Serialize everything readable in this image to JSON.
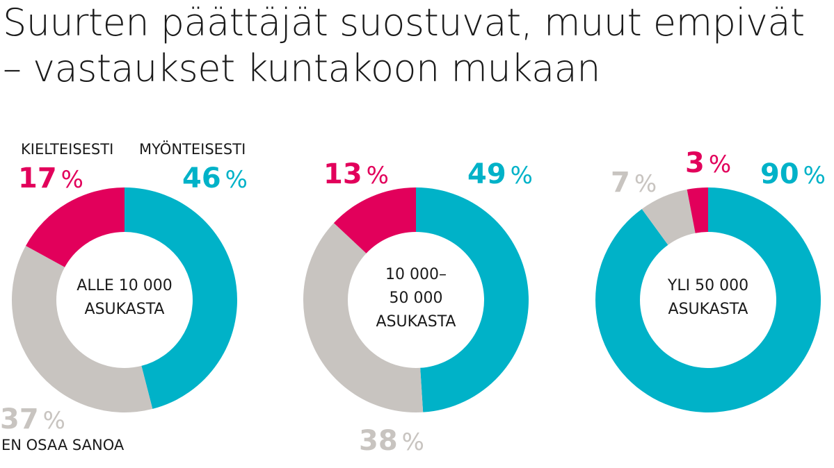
{
  "title_lines": [
    "Suurten päättäjät suostuvat, muut empivät",
    "– vastaukset kuntakoon mukaan"
  ],
  "colors": {
    "yes": "#00b2c8",
    "no": "#e2005b",
    "dontknow": "#c8c4c0"
  },
  "labels": {
    "no": "KIELTEISESTI",
    "yes": "MYÖNTEISESTI",
    "dontknow": "EN OSAA SANOA"
  },
  "percent_sign": "%",
  "chart_data": [
    {
      "type": "pie",
      "title": "ALLE 10 000 ASUKASTA",
      "center_lines": [
        "ALLE 10 000",
        "ASUKASTA"
      ],
      "categories": [
        "Myönteisesti",
        "En osaa sanoa",
        "Kielteisesti"
      ],
      "values": [
        46,
        37,
        17
      ]
    },
    {
      "type": "pie",
      "title": "10 000–50 000 ASUKASTA",
      "center_lines": [
        "10 000–",
        "50 000",
        "ASUKASTA"
      ],
      "categories": [
        "Myönteisesti",
        "En osaa sanoa",
        "Kielteisesti"
      ],
      "values": [
        49,
        38,
        13
      ]
    },
    {
      "type": "pie",
      "title": "YLI 50 000 ASUKASTA",
      "center_lines": [
        "YLI 50 000",
        "ASUKASTA"
      ],
      "categories": [
        "Myönteisesti",
        "En osaa sanoa",
        "Kielteisesti"
      ],
      "values": [
        90,
        7,
        3
      ]
    }
  ]
}
